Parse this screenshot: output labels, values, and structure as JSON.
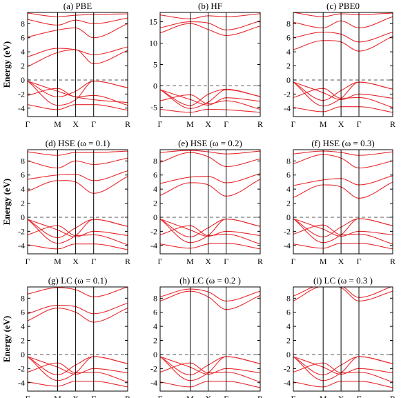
{
  "chart_data": [
    {
      "id": "pbe",
      "type": "line",
      "title": "(a) PBE",
      "ylabel": "Energy (eV)",
      "ylim": [
        -5.2,
        9.6
      ],
      "yticks": [
        -4,
        -2,
        0,
        2,
        4,
        6,
        8
      ],
      "kpoints": [
        "Γ",
        "M",
        "X",
        "Γ",
        "R"
      ],
      "series": [
        {
          "values": [
            -0.15,
            -1.6,
            -2.4,
            -2.8,
            -3.2
          ]
        },
        {
          "values": [
            -0.15,
            -2.4,
            -1.6,
            -0.15,
            -1.1
          ]
        },
        {
          "values": [
            -0.15,
            -3.6,
            -2.8,
            -0.15,
            -1.1
          ]
        },
        {
          "values": [
            -2.2,
            -1.2,
            -2.4,
            -2.2,
            -3.6
          ]
        },
        {
          "values": [
            -3.5,
            -4.2,
            -3.5,
            -3.5,
            -4.3
          ]
        },
        {
          "values": [
            1.9,
            3.9,
            4.3,
            2.3,
            4.2
          ]
        },
        {
          "values": [
            3.3,
            4.5,
            4.3,
            3.6,
            4.7
          ]
        },
        {
          "values": [
            6.1,
            7.1,
            7.4,
            6.0,
            8.0
          ]
        },
        {
          "values": [
            8.6,
            7.8,
            8.5,
            8.0,
            8.8
          ]
        },
        {
          "values": [
            9.5,
            9.0,
            9.2,
            9.3,
            9.4
          ]
        }
      ]
    },
    {
      "id": "hf",
      "type": "line",
      "title": "(b) HF",
      "ylabel": "",
      "ylim": [
        -7.2,
        17.2
      ],
      "yticks": [
        -5,
        0,
        5,
        10,
        15
      ],
      "kpoints": [
        "Γ",
        "M",
        "X",
        "Γ",
        "R"
      ],
      "series": [
        {
          "values": [
            -0.9,
            -3.2,
            -4.5,
            -2.8,
            -3.6
          ]
        },
        {
          "values": [
            -0.9,
            -4.6,
            -2.0,
            -0.8,
            -2.5
          ]
        },
        {
          "values": [
            -0.9,
            -5.3,
            -3.8,
            -0.9,
            -2.5
          ]
        },
        {
          "values": [
            -3.5,
            -2.1,
            -4.2,
            -3.5,
            -5.5
          ]
        },
        {
          "values": [
            -5.5,
            -6.2,
            -5.5,
            -5.6,
            -6.2
          ]
        },
        {
          "values": [
            12.4,
            14.6,
            13.2,
            11.8,
            14.0
          ]
        },
        {
          "values": [
            13.6,
            15.0,
            14.7,
            13.1,
            15.2
          ]
        },
        {
          "values": [
            16.6,
            15.7,
            16.4,
            16.2,
            16.9
          ]
        }
      ]
    },
    {
      "id": "pbe0",
      "type": "line",
      "title": "(c) PBE0",
      "ylabel": "",
      "ylim": [
        -5.2,
        9.6
      ],
      "yticks": [
        -4,
        -2,
        0,
        2,
        4,
        6,
        8
      ],
      "kpoints": [
        "Γ",
        "M",
        "X",
        "Γ",
        "R"
      ],
      "series": [
        {
          "values": [
            -0.3,
            -1.8,
            -2.8,
            -2.0,
            -2.6
          ]
        },
        {
          "values": [
            -0.3,
            -2.9,
            -1.5,
            -0.3,
            -1.3
          ]
        },
        {
          "values": [
            -0.3,
            -3.7,
            -2.6,
            -0.3,
            -1.3
          ]
        },
        {
          "values": [
            -2.5,
            -1.2,
            -2.6,
            -2.5,
            -3.9
          ]
        },
        {
          "values": [
            -3.9,
            -4.5,
            -3.8,
            -3.8,
            -4.6
          ]
        },
        {
          "values": [
            4.3,
            5.6,
            5.4,
            4.1,
            6.2
          ]
        },
        {
          "values": [
            6.0,
            6.8,
            6.5,
            5.4,
            6.8
          ]
        },
        {
          "values": [
            8.2,
            7.4,
            8.4,
            7.4,
            9.0
          ]
        },
        {
          "values": [
            9.6,
            9.0,
            9.4,
            9.3,
            9.5
          ]
        }
      ]
    },
    {
      "id": "hse01",
      "type": "line",
      "title": "(d) HSE (ω = 0.1)",
      "ylabel": "Energy (eV)",
      "ylim": [
        -5.2,
        9.6
      ],
      "yticks": [
        -4,
        -2,
        0,
        2,
        4,
        6,
        8
      ],
      "kpoints": [
        "Γ",
        "M",
        "X",
        "Γ",
        "R"
      ],
      "series": [
        {
          "values": [
            -0.3,
            -1.8,
            -2.8,
            -2.0,
            -2.6
          ]
        },
        {
          "values": [
            -0.3,
            -2.9,
            -1.5,
            -0.3,
            -1.3
          ]
        },
        {
          "values": [
            -0.3,
            -3.7,
            -2.6,
            -0.3,
            -1.3
          ]
        },
        {
          "values": [
            -2.5,
            -1.2,
            -2.6,
            -2.5,
            -3.9
          ]
        },
        {
          "values": [
            -3.9,
            -4.5,
            -3.8,
            -3.8,
            -4.6
          ]
        },
        {
          "values": [
            3.7,
            5.2,
            5.0,
            3.4,
            5.8
          ]
        },
        {
          "values": [
            5.4,
            6.0,
            6.1,
            5.2,
            6.6
          ]
        },
        {
          "values": [
            8.0,
            7.0,
            8.0,
            7.5,
            8.4
          ]
        },
        {
          "values": [
            9.3,
            8.8,
            9.2,
            9.2,
            9.4
          ]
        }
      ]
    },
    {
      "id": "hse02",
      "type": "line",
      "title": "(e) HSE (ω = 0.2)",
      "ylabel": "",
      "ylim": [
        -5.2,
        9.6
      ],
      "yticks": [
        -4,
        -2,
        0,
        2,
        4,
        6,
        8
      ],
      "kpoints": [
        "Γ",
        "M",
        "X",
        "Γ",
        "R"
      ],
      "series": [
        {
          "values": [
            -0.25,
            -1.8,
            -2.7,
            -2.0,
            -2.6
          ]
        },
        {
          "values": [
            -0.25,
            -2.8,
            -1.5,
            -0.25,
            -1.3
          ]
        },
        {
          "values": [
            -0.25,
            -3.6,
            -2.6,
            -0.25,
            -1.3
          ]
        },
        {
          "values": [
            -2.5,
            -1.2,
            -2.6,
            -2.4,
            -3.8
          ]
        },
        {
          "values": [
            -3.8,
            -4.4,
            -3.8,
            -3.7,
            -4.5
          ]
        },
        {
          "values": [
            3.1,
            4.9,
            4.6,
            3.0,
            5.4
          ]
        },
        {
          "values": [
            4.8,
            5.7,
            5.8,
            4.9,
            6.2
          ]
        },
        {
          "values": [
            7.8,
            9.2,
            8.6,
            7.2,
            8.3
          ]
        },
        {
          "values": [
            9.2,
            9.5,
            9.3,
            9.0,
            9.4
          ]
        }
      ]
    },
    {
      "id": "hse03",
      "type": "line",
      "title": "(f) HSE (ω = 0.3)",
      "ylabel": "",
      "ylim": [
        -5.2,
        9.6
      ],
      "yticks": [
        -4,
        -2,
        0,
        2,
        4,
        6,
        8
      ],
      "kpoints": [
        "Γ",
        "M",
        "X",
        "Γ",
        "R"
      ],
      "series": [
        {
          "values": [
            -0.2,
            -1.7,
            -2.7,
            -2.0,
            -2.5
          ]
        },
        {
          "values": [
            -0.2,
            -2.8,
            -1.4,
            -0.2,
            -1.2
          ]
        },
        {
          "values": [
            -0.2,
            -3.6,
            -2.5,
            -0.2,
            -1.2
          ]
        },
        {
          "values": [
            -2.4,
            -1.1,
            -2.5,
            -2.4,
            -3.8
          ]
        },
        {
          "values": [
            -3.8,
            -4.4,
            -3.7,
            -3.7,
            -4.5
          ]
        },
        {
          "values": [
            2.8,
            4.6,
            4.3,
            2.7,
            5.0
          ]
        },
        {
          "values": [
            4.5,
            5.3,
            5.5,
            4.6,
            5.9
          ]
        },
        {
          "values": [
            7.6,
            8.9,
            8.4,
            7.0,
            8.0
          ]
        },
        {
          "values": [
            9.0,
            9.4,
            9.2,
            8.8,
            9.3
          ]
        }
      ]
    },
    {
      "id": "lc01",
      "type": "line",
      "title": "(g) LC (ω = 0.1)",
      "ylabel": "Energy (eV)",
      "ylim": [
        -5.2,
        9.6
      ],
      "yticks": [
        -4,
        -2,
        0,
        2,
        4,
        6,
        8
      ],
      "kpoints": [
        "Γ",
        "M",
        "X",
        "Γ",
        "R"
      ],
      "series": [
        {
          "values": [
            -0.3,
            -1.8,
            -2.8,
            -2.0,
            -2.6
          ]
        },
        {
          "values": [
            -0.3,
            -2.9,
            -1.5,
            -0.3,
            -1.3
          ]
        },
        {
          "values": [
            -0.3,
            -3.7,
            -2.6,
            -0.3,
            -1.3
          ]
        },
        {
          "values": [
            -2.5,
            -1.2,
            -2.6,
            -2.5,
            -3.9
          ]
        },
        {
          "values": [
            -3.9,
            -4.5,
            -3.8,
            -3.8,
            -4.6
          ]
        },
        {
          "values": [
            4.8,
            6.6,
            6.0,
            4.6,
            6.6
          ]
        },
        {
          "values": [
            5.8,
            7.0,
            6.8,
            5.8,
            7.3
          ]
        },
        {
          "values": [
            8.6,
            9.5,
            9.2,
            8.2,
            9.6
          ]
        }
      ]
    },
    {
      "id": "lc02",
      "type": "line",
      "title": "(h) LC (ω = 0.2 )",
      "ylabel": "",
      "ylim": [
        -5.2,
        9.6
      ],
      "yticks": [
        -4,
        -2,
        0,
        2,
        4,
        6,
        8
      ],
      "kpoints": [
        "Γ",
        "M",
        "X",
        "Γ",
        "R"
      ],
      "series": [
        {
          "values": [
            -0.3,
            -1.8,
            -2.8,
            -2.0,
            -2.6
          ]
        },
        {
          "values": [
            -0.3,
            -2.9,
            -1.5,
            -0.3,
            -1.3
          ]
        },
        {
          "values": [
            -0.3,
            -3.7,
            -2.6,
            -0.3,
            -1.3
          ]
        },
        {
          "values": [
            -2.5,
            -1.2,
            -2.6,
            -2.5,
            -3.9
          ]
        },
        {
          "values": [
            -3.9,
            -4.6,
            -3.8,
            -3.8,
            -4.7
          ]
        },
        {
          "values": [
            7.6,
            9.0,
            8.2,
            6.4,
            8.4
          ]
        },
        {
          "values": [
            8.2,
            9.3,
            8.9,
            7.6,
            9.0
          ]
        }
      ]
    },
    {
      "id": "lc03",
      "type": "line",
      "title": "(i) LC (ω = 0.3 )",
      "ylabel": "",
      "ylim": [
        -5.2,
        9.6
      ],
      "yticks": [
        -4,
        -2,
        0,
        2,
        4,
        6,
        8
      ],
      "kpoints": [
        "Γ",
        "M",
        "X",
        "Γ",
        "R"
      ],
      "series": [
        {
          "values": [
            -0.3,
            -1.8,
            -2.8,
            -2.0,
            -2.6
          ]
        },
        {
          "values": [
            -0.3,
            -2.9,
            -1.5,
            -0.3,
            -1.3
          ]
        },
        {
          "values": [
            -0.3,
            -3.7,
            -2.6,
            -0.3,
            -1.3
          ]
        },
        {
          "values": [
            -2.5,
            -1.2,
            -2.6,
            -2.5,
            -3.9
          ]
        },
        {
          "values": [
            -3.9,
            -4.6,
            -3.8,
            -3.8,
            -4.7
          ]
        },
        {
          "values": [
            7.6,
            9.7,
            9.5,
            7.6,
            9.0
          ]
        },
        {
          "values": [
            8.3,
            9.9,
            9.8,
            8.1,
            9.7
          ]
        }
      ]
    }
  ]
}
